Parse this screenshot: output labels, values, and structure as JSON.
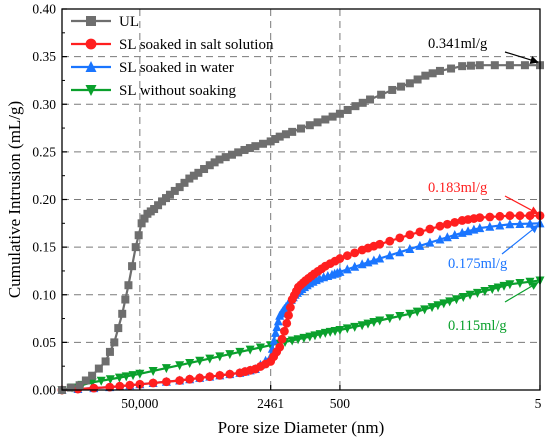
{
  "chart_data": {
    "type": "line",
    "xlabel": "Pore size Diameter (nm)",
    "ylabel": "Cumulative Intrusion (mL/g)",
    "x_scale": "log (reversed)",
    "xlim": [
      300000,
      5
    ],
    "ylim": [
      0,
      0.4
    ],
    "x_tick_labels": [
      "50,000",
      "2461",
      "500",
      "5"
    ],
    "x_ticks": [
      50000,
      2461,
      500,
      5
    ],
    "y_ticks": [
      0.0,
      0.05,
      0.1,
      0.15,
      0.2,
      0.25,
      0.3,
      0.35,
      0.4
    ],
    "y_tick_labels": [
      "0.00",
      "0.05",
      "0.10",
      "0.15",
      "0.20",
      "0.25",
      "0.30",
      "0.35",
      "0.40"
    ],
    "grid": "dashed",
    "legend_position": "top-left",
    "series": [
      {
        "name": "UL",
        "color": "#6e6e6e",
        "marker": "square",
        "x": [
          300000,
          200000,
          150000,
          110000,
          90000,
          75000,
          65000,
          55000,
          48000,
          42000,
          36000,
          30000,
          25000,
          20000,
          16000,
          13000,
          10000,
          8000,
          6000,
          4500,
          3500,
          2461,
          2000,
          1500,
          1000,
          700,
          500,
          350,
          250,
          150,
          100,
          70,
          50,
          30,
          20,
          10,
          5
        ],
        "y": [
          0.0,
          0.005,
          0.015,
          0.03,
          0.05,
          0.08,
          0.11,
          0.15,
          0.175,
          0.185,
          0.19,
          0.198,
          0.205,
          0.213,
          0.222,
          0.228,
          0.236,
          0.242,
          0.247,
          0.252,
          0.256,
          0.261,
          0.266,
          0.271,
          0.278,
          0.284,
          0.29,
          0.298,
          0.305,
          0.315,
          0.322,
          0.33,
          0.335,
          0.34,
          0.341,
          0.341,
          0.341
        ]
      },
      {
        "name": "SL soaked in salt solution",
        "color": "#ff1f1f",
        "marker": "circle",
        "x": [
          300000,
          100000,
          50000,
          20000,
          10000,
          5000,
          3500,
          2461,
          2000,
          1700,
          1500,
          1300,
          1100,
          900,
          700,
          500,
          300,
          200,
          100,
          50,
          30,
          20,
          10,
          5
        ],
        "y": [
          0.0,
          0.003,
          0.006,
          0.01,
          0.014,
          0.018,
          0.022,
          0.03,
          0.045,
          0.07,
          0.095,
          0.108,
          0.115,
          0.122,
          0.13,
          0.138,
          0.147,
          0.153,
          0.163,
          0.172,
          0.178,
          0.181,
          0.183,
          0.183
        ]
      },
      {
        "name": "SL soaked in water",
        "color": "#1a75ff",
        "marker": "triangle-up",
        "x": [
          300000,
          100000,
          50000,
          20000,
          10000,
          5000,
          3500,
          2461,
          2200,
          2000,
          1800,
          1600,
          1400,
          1200,
          1000,
          800,
          600,
          500,
          300,
          200,
          100,
          50,
          30,
          20,
          10,
          5
        ],
        "y": [
          0.0,
          0.003,
          0.006,
          0.01,
          0.014,
          0.018,
          0.022,
          0.035,
          0.06,
          0.078,
          0.085,
          0.092,
          0.1,
          0.106,
          0.112,
          0.117,
          0.121,
          0.124,
          0.132,
          0.138,
          0.148,
          0.158,
          0.165,
          0.17,
          0.174,
          0.175
        ]
      },
      {
        "name": "SL without soaking",
        "color": "#0aa02c",
        "marker": "triangle-down",
        "x": [
          300000,
          150000,
          80000,
          50000,
          20000,
          10000,
          5000,
          2461,
          1500,
          1000,
          700,
          500,
          300,
          200,
          100,
          60,
          40,
          25,
          15,
          10,
          5
        ],
        "y": [
          0.0,
          0.008,
          0.013,
          0.017,
          0.026,
          0.033,
          0.04,
          0.047,
          0.052,
          0.056,
          0.06,
          0.063,
          0.068,
          0.073,
          0.08,
          0.087,
          0.093,
          0.1,
          0.106,
          0.111,
          0.115
        ]
      }
    ],
    "annotations": [
      {
        "text": "0.341ml/g",
        "color": "#000000"
      },
      {
        "text": "0.183ml/g",
        "color": "#ff1f1f"
      },
      {
        "text": "0.175ml/g",
        "color": "#1a75ff"
      },
      {
        "text": "0.115ml/g",
        "color": "#0aa02c"
      }
    ]
  }
}
